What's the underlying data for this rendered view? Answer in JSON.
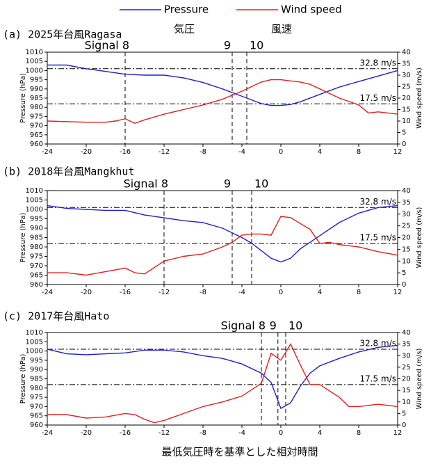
{
  "legend": [
    {
      "name": "Pressure",
      "sublabel": "気圧",
      "color": "#1f1fd0"
    },
    {
      "name": "Wind speed",
      "sublabel": "風速",
      "color": "#e02020"
    }
  ],
  "x_axis_label": "最低気圧時を基準とした相対時間",
  "chart_data": [
    {
      "type": "line",
      "title": "(a) 2025年台風Ragasa",
      "ylabel": "Pressure (hPa)",
      "y2label": "Wind speed (m/s)",
      "xlim": [
        -24,
        12
      ],
      "xticks": [
        -24,
        -20,
        -16,
        -12,
        -8,
        -4,
        0,
        4,
        8,
        12
      ],
      "ylim": [
        960,
        1010
      ],
      "yticks": [
        960,
        965,
        970,
        975,
        980,
        985,
        990,
        995,
        1000,
        1005,
        1010
      ],
      "y2lim": [
        0,
        40
      ],
      "y2ticks": [
        0,
        5,
        10,
        15,
        20,
        25,
        30,
        35,
        40
      ],
      "series": [
        {
          "x": [
            -24,
            -22,
            -20,
            -18,
            -16,
            -14,
            -12,
            -10,
            -8,
            -6,
            -4,
            -3,
            -2,
            -1,
            0,
            1,
            2,
            4,
            6,
            8,
            10,
            12
          ],
          "values": [
            1003,
            1003,
            1001,
            999.5,
            998,
            997.5,
            997.5,
            996,
            993.5,
            990,
            986,
            984,
            982,
            981,
            981,
            981.5,
            983,
            987,
            991,
            994,
            997,
            1000
          ]
        },
        {
          "axis": "y2",
          "x": [
            -24,
            -20,
            -18,
            -17,
            -16,
            -15,
            -14,
            -12,
            -10,
            -8,
            -6,
            -4,
            -3,
            -2,
            -1,
            0,
            1,
            2,
            3,
            4,
            6,
            8,
            9,
            10,
            12
          ],
          "values": [
            10,
            9.5,
            9.5,
            10,
            11,
            9,
            10.5,
            13,
            15,
            17,
            19.5,
            23,
            25,
            27,
            28,
            28,
            27.5,
            27,
            26,
            24,
            20,
            17,
            13.5,
            14,
            13
          ]
        }
      ],
      "thresholds": [
        {
          "value": 17.5,
          "label": "17.5 m/s"
        },
        {
          "value": 32.8,
          "label": "32.8 m/s"
        }
      ],
      "signals": [
        {
          "x": -16,
          "label": "Signal 8"
        },
        {
          "x": -5,
          "label": "9"
        },
        {
          "x": -3.5,
          "label": "10"
        }
      ]
    },
    {
      "type": "line",
      "title": "(b) 2018年台風Mangkhut",
      "ylabel": "Pressure (hPa)",
      "y2label": "Wind speed (m/s)",
      "xlim": [
        -24,
        12
      ],
      "xticks": [
        -24,
        -20,
        -16,
        -12,
        -8,
        -4,
        0,
        4,
        8,
        12
      ],
      "ylim": [
        960,
        1010
      ],
      "yticks": [
        960,
        965,
        970,
        975,
        980,
        985,
        990,
        995,
        1000,
        1005,
        1010
      ],
      "y2lim": [
        0,
        40
      ],
      "y2ticks": [
        0,
        5,
        10,
        15,
        20,
        25,
        30,
        35,
        40
      ],
      "series": [
        {
          "x": [
            -24,
            -22,
            -20,
            -18,
            -16,
            -14,
            -12,
            -10,
            -8,
            -6,
            -4,
            -3,
            -2,
            -1,
            0,
            1,
            2,
            4,
            6,
            8,
            10,
            12
          ],
          "values": [
            1002,
            1000.5,
            1000,
            999.5,
            999.5,
            997,
            995.5,
            994,
            993,
            990,
            985,
            982,
            978,
            974,
            972,
            974,
            979,
            986,
            993,
            998,
            1001,
            1002
          ]
        },
        {
          "axis": "y2",
          "x": [
            -24,
            -22,
            -20,
            -18,
            -16,
            -15,
            -14,
            -12,
            -10,
            -8,
            -6,
            -5,
            -4,
            -3,
            -2,
            -1,
            0,
            1,
            2,
            3,
            4,
            5,
            6,
            8,
            10,
            12
          ],
          "values": [
            5,
            5,
            4,
            5.5,
            7,
            5,
            4.5,
            10,
            12,
            13,
            16,
            18,
            21,
            21.5,
            21.5,
            21,
            29,
            28.5,
            26,
            23.5,
            17.5,
            18,
            17,
            16,
            14,
            12.5
          ]
        }
      ],
      "thresholds": [
        {
          "value": 17.5,
          "label": "17.5 m/s"
        },
        {
          "value": 32.8,
          "label": "32.8 m/s"
        }
      ],
      "signals": [
        {
          "x": -12,
          "label": "Signal 8"
        },
        {
          "x": -5,
          "label": "9"
        },
        {
          "x": -3,
          "label": "10"
        }
      ]
    },
    {
      "type": "line",
      "title": "(c) 2017年台風Hato",
      "ylabel": "Pressure (hPa)",
      "y2label": "Wind speed (m/s)",
      "xlim": [
        -24,
        12
      ],
      "xticks": [
        -24,
        -20,
        -16,
        -12,
        -8,
        -4,
        0,
        4,
        8,
        12
      ],
      "ylim": [
        960,
        1010
      ],
      "yticks": [
        960,
        965,
        970,
        975,
        980,
        985,
        990,
        995,
        1000,
        1005,
        1010
      ],
      "y2lim": [
        0,
        40
      ],
      "y2ticks": [
        0,
        5,
        10,
        15,
        20,
        25,
        30,
        35,
        40
      ],
      "series": [
        {
          "x": [
            -24,
            -22,
            -20,
            -18,
            -16,
            -14,
            -12,
            -10,
            -8,
            -6,
            -4,
            -2,
            -1,
            0,
            1,
            2,
            3,
            4,
            6,
            8,
            10,
            12
          ],
          "values": [
            1001,
            998.5,
            998,
            998.5,
            999,
            1000.5,
            1000.5,
            999.5,
            997.5,
            996,
            993,
            988,
            983,
            969,
            972,
            981,
            988,
            992,
            996,
            999.5,
            1002,
            1003
          ]
        },
        {
          "axis": "y2",
          "x": [
            -24,
            -22,
            -20,
            -18,
            -16,
            -15,
            -14,
            -13,
            -12,
            -10,
            -8,
            -6,
            -4,
            -2,
            -1,
            0,
            1,
            2,
            3,
            4,
            6,
            7,
            8,
            10,
            12
          ],
          "values": [
            4.5,
            4.5,
            3,
            3.5,
            5,
            4.5,
            2.5,
            1,
            2,
            5,
            8,
            10,
            12.5,
            18,
            31,
            28,
            35,
            26,
            17.5,
            17.5,
            12,
            8,
            8,
            9,
            8
          ]
        }
      ],
      "thresholds": [
        {
          "value": 17.5,
          "label": "17.5 m/s"
        },
        {
          "value": 32.8,
          "label": "32.8 m/s"
        }
      ],
      "signals": [
        {
          "x": -2,
          "label": "Signal 8"
        },
        {
          "x": -0.3,
          "label": "9"
        },
        {
          "x": 0.5,
          "label": "10"
        }
      ]
    }
  ]
}
